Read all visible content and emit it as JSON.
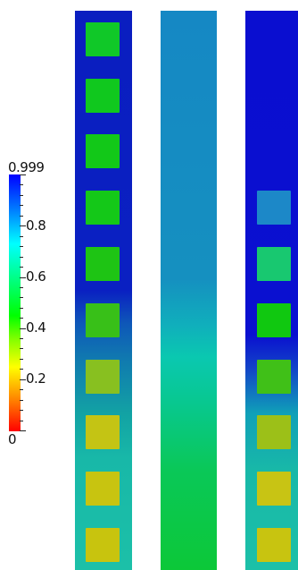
{
  "colorbar": {
    "max_label": "0.999",
    "labels": [
      "0.8",
      "0.6",
      "0.4",
      "0.2"
    ],
    "min_label": "0",
    "colors": [
      "#0000ff",
      "#00ffff",
      "#00ff00",
      "#ffff00",
      "#ff0000"
    ]
  },
  "columns": [
    {
      "name": "left-column",
      "cells": [
        "#10c828",
        "#10c81e",
        "#12c818",
        "#14c818",
        "#1ec414",
        "#38c018",
        "#88c020",
        "#c4c414",
        "#c8c410",
        "#c8c40e"
      ]
    },
    {
      "name": "middle-column",
      "cells": []
    },
    {
      "name": "right-column",
      "cells": [
        "#1c88c8",
        "#18c870",
        "#10c810",
        "#40c018",
        "#9cc018",
        "#c8c414",
        "#c8c410"
      ]
    }
  ]
}
